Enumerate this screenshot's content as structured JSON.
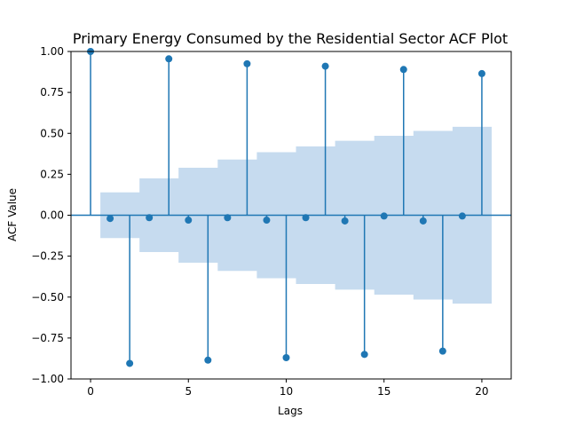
{
  "chart_data": {
    "type": "stem",
    "title": "Primary Energy Consumed by the Residential Sector ACF Plot",
    "xlabel": "Lags",
    "ylabel": "ACF Value",
    "xlim": [
      -1,
      21.5
    ],
    "ylim": [
      -1.0,
      1.0
    ],
    "x_ticks": [
      0,
      5,
      10,
      15,
      20
    ],
    "x_tick_labels": [
      "0",
      "5",
      "10",
      "15",
      "20"
    ],
    "y_ticks": [
      -1.0,
      -0.75,
      -0.5,
      -0.25,
      0.0,
      0.25,
      0.5,
      0.75,
      1.0
    ],
    "y_tick_labels": [
      "−1.00",
      "−0.75",
      "−0.50",
      "−0.25",
      "0.00",
      "0.25",
      "0.50",
      "0.75",
      "1.00"
    ],
    "grid": false,
    "lags": [
      0,
      1,
      2,
      3,
      4,
      5,
      6,
      7,
      8,
      9,
      10,
      11,
      12,
      13,
      14,
      15,
      16,
      17,
      18,
      19,
      20
    ],
    "acf": [
      1.0,
      -0.02,
      -0.905,
      -0.015,
      0.955,
      -0.03,
      -0.885,
      -0.015,
      0.925,
      -0.03,
      -0.87,
      -0.015,
      0.91,
      -0.035,
      -0.85,
      -0.005,
      0.89,
      -0.035,
      -0.83,
      -0.005,
      0.865
    ],
    "confint": [
      0.14,
      0.14,
      0.225,
      0.225,
      0.29,
      0.29,
      0.34,
      0.34,
      0.385,
      0.385,
      0.42,
      0.42,
      0.455,
      0.455,
      0.485,
      0.485,
      0.515,
      0.515,
      0.54,
      0.54
    ],
    "colors": {
      "stem": "#1f77b4",
      "band": "#c6dbef",
      "axis": "#000000"
    }
  }
}
